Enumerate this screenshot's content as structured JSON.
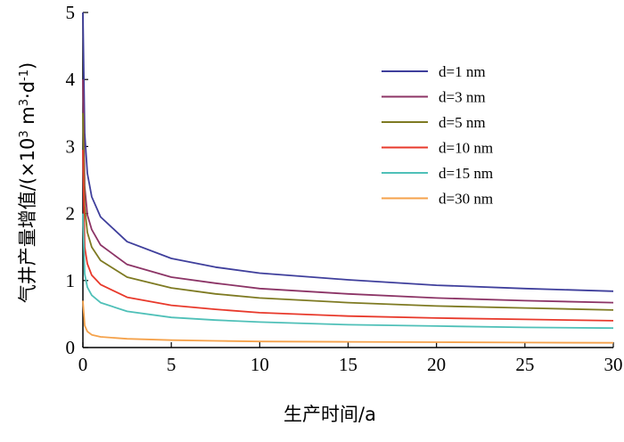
{
  "chart_data": {
    "type": "line",
    "title": "",
    "xlabel": "生产时间/a",
    "ylabel_text": "气井产量增值/(×10",
    "ylabel_unit_1": " m",
    "ylabel_unit_2": "·d",
    "ylabel_close": ")",
    "ylabel_sup_exp1": "3",
    "ylabel_sup_exp2": "3",
    "ylabel_sup_exp3": "-1",
    "xlim": [
      0,
      30
    ],
    "ylim": [
      0,
      5
    ],
    "x_ticks": [
      0,
      5,
      10,
      15,
      20,
      25,
      30
    ],
    "y_ticks": [
      0,
      1,
      2,
      3,
      4,
      5
    ],
    "x_tick_labels": [
      "0",
      "5",
      "10",
      "15",
      "20",
      "25",
      "30"
    ],
    "y_tick_labels": [
      "0",
      "1",
      "2",
      "3",
      "4",
      "5"
    ],
    "legend_position": "top-right",
    "x": [
      0,
      0.1,
      0.25,
      0.5,
      1,
      2.5,
      5,
      7.5,
      10,
      15,
      20,
      25,
      30
    ],
    "series": [
      {
        "name": "d=1 nm",
        "color": "#3f3f9c",
        "values": [
          5.0,
          3.2,
          2.6,
          2.25,
          1.95,
          1.58,
          1.33,
          1.2,
          1.11,
          1.01,
          0.93,
          0.88,
          0.84
        ]
      },
      {
        "name": "d=3 nm",
        "color": "#8c3466",
        "values": [
          4.0,
          2.4,
          1.98,
          1.76,
          1.53,
          1.24,
          1.05,
          0.96,
          0.88,
          0.8,
          0.74,
          0.7,
          0.67
        ]
      },
      {
        "name": "d=5 nm",
        "color": "#7e7a22",
        "values": [
          3.5,
          2.1,
          1.72,
          1.5,
          1.3,
          1.05,
          0.89,
          0.8,
          0.74,
          0.67,
          0.62,
          0.59,
          0.56
        ]
      },
      {
        "name": "d=10 nm",
        "color": "#e8392b",
        "values": [
          2.95,
          1.5,
          1.25,
          1.08,
          0.94,
          0.75,
          0.63,
          0.57,
          0.52,
          0.47,
          0.44,
          0.42,
          0.4
        ]
      },
      {
        "name": "d=15 nm",
        "color": "#4fc0b8",
        "values": [
          2.0,
          1.1,
          0.9,
          0.78,
          0.67,
          0.54,
          0.45,
          0.41,
          0.38,
          0.34,
          0.32,
          0.3,
          0.29
        ]
      },
      {
        "name": "d=30 nm",
        "color": "#f5a24b",
        "values": [
          0.7,
          0.33,
          0.24,
          0.19,
          0.16,
          0.13,
          0.11,
          0.1,
          0.09,
          0.085,
          0.08,
          0.075,
          0.07
        ]
      }
    ]
  }
}
